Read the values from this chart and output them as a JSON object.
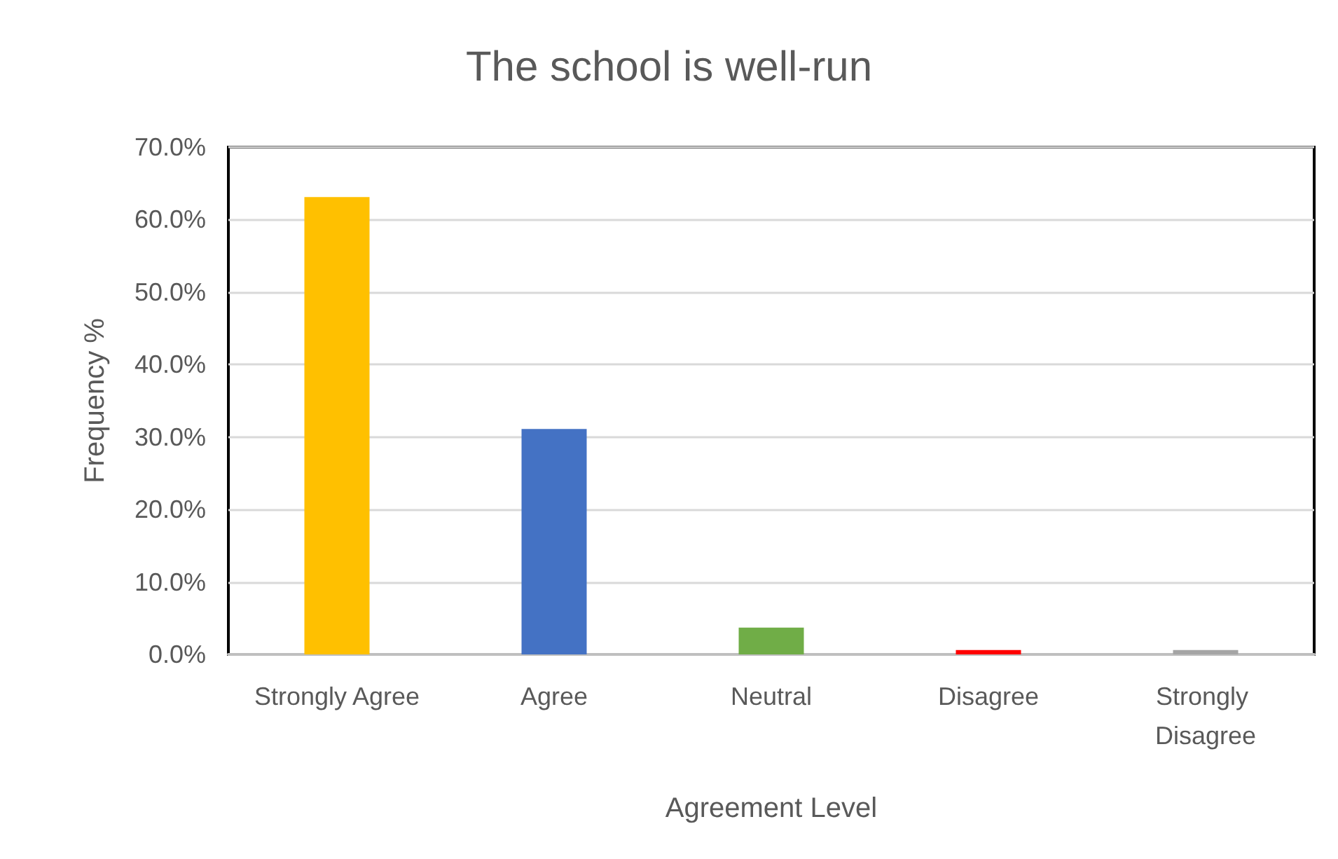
{
  "chart_data": {
    "type": "bar",
    "title": "The school is well-run",
    "xlabel": "Agreement Level",
    "ylabel": "Frequency %",
    "categories": [
      "Strongly Agree",
      "Agree",
      "Neutral",
      "Disagree",
      "Strongly Disagree"
    ],
    "values": [
      63.1,
      31.1,
      3.7,
      0.6,
      0.6
    ],
    "colors": [
      "#ffc000",
      "#4472c4",
      "#70ad47",
      "#ff0000",
      "#a5a5a5"
    ],
    "ylim": [
      0,
      70
    ],
    "yticks": [
      {
        "value": 0,
        "label": "0.0%"
      },
      {
        "value": 10,
        "label": "10.0%"
      },
      {
        "value": 20,
        "label": "20.0%"
      },
      {
        "value": 30,
        "label": "30.0%"
      },
      {
        "value": 40,
        "label": "40.0%"
      },
      {
        "value": 50,
        "label": "50.0%"
      },
      {
        "value": 60,
        "label": "60.0%"
      },
      {
        "value": 70,
        "label": "70.0%"
      }
    ],
    "grid": "y"
  }
}
